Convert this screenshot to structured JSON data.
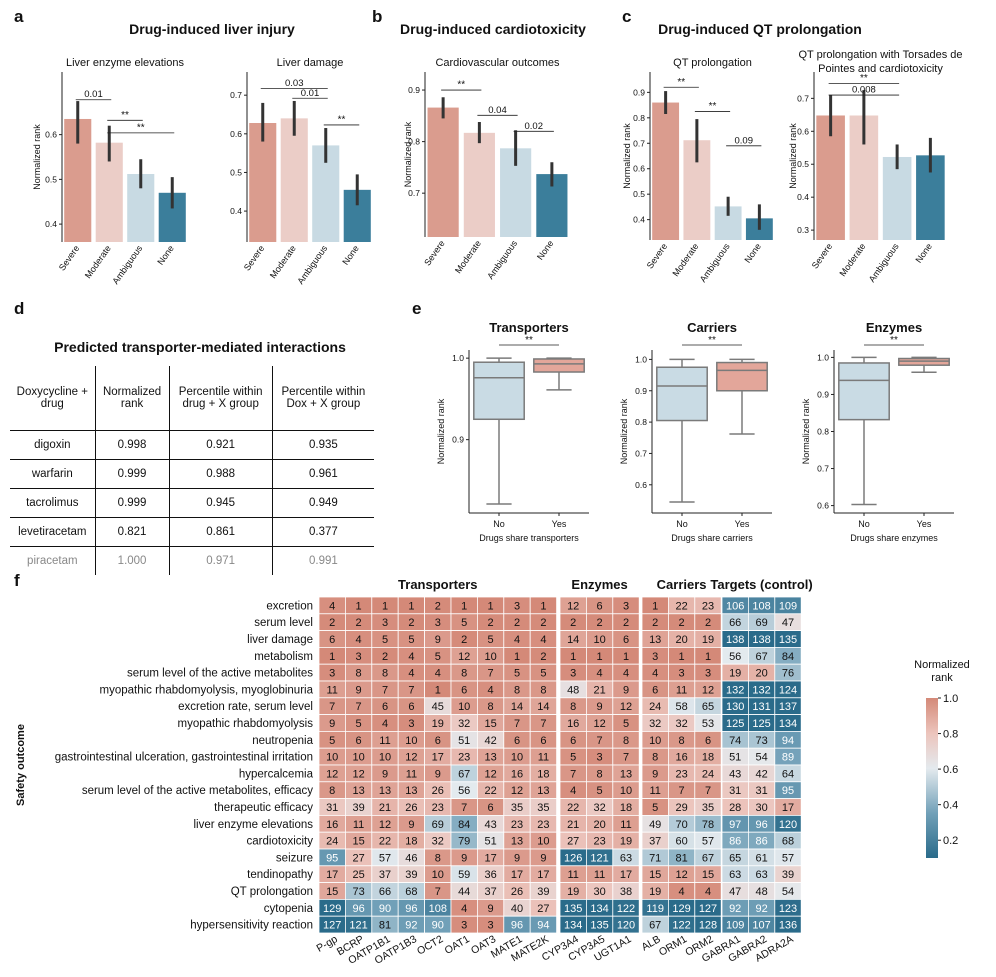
{
  "panels": {
    "a": {
      "letter": "a",
      "title": "Drug-induced liver injury"
    },
    "b": {
      "letter": "b",
      "title": "Drug-induced cardiotoxicity"
    },
    "c": {
      "letter": "c",
      "title": "Drug-induced QT prolongation"
    },
    "d": {
      "letter": "d",
      "title": "Predicted transporter-mediated interactions"
    },
    "e": {
      "letter": "e"
    },
    "f": {
      "letter": "f"
    }
  },
  "table": {
    "headers": [
      "Doxycycline + drug",
      "Normalized rank",
      "Percentile within drug + X group",
      "Percentile within Dox + X group"
    ],
    "rows": [
      [
        "digoxin",
        "0.998",
        "0.921",
        "0.935"
      ],
      [
        "warfarin",
        "0.999",
        "0.988",
        "0.961"
      ],
      [
        "tacrolimus",
        "0.999",
        "0.945",
        "0.949"
      ],
      [
        "levetiracetam",
        "0.821",
        "0.861",
        "0.377"
      ],
      [
        "piracetam",
        "1.000",
        "0.971",
        "0.991"
      ]
    ]
  },
  "colors": {
    "severe": "#da9c8e",
    "moderate": "#ebcdc7",
    "ambiguous": "#c8dae3",
    "none": "#3b7e9b",
    "box_no": "#c9dbe4",
    "box_yes": "#e3a69a"
  },
  "chart_data": [
    {
      "type": "bar",
      "title": "Liver enzyme elevations",
      "ylabel": "Normalized rank",
      "categories": [
        "Severe",
        "Moderate",
        "Ambiguous",
        "None"
      ],
      "values": [
        0.635,
        0.582,
        0.512,
        0.47
      ],
      "error": [
        [
          0.58,
          0.675
        ],
        [
          0.54,
          0.62
        ],
        [
          0.48,
          0.545
        ],
        [
          0.435,
          0.505
        ]
      ],
      "ylim": [
        0.36,
        0.74
      ],
      "yticks": [
        0.4,
        0.5,
        0.6
      ],
      "annotations": [
        {
          "from": 0,
          "to": 1,
          "y": 0.678,
          "text": "0.01"
        },
        {
          "from": 1,
          "to": 2,
          "y": 0.632,
          "text": "**"
        },
        {
          "from": 1,
          "to": 3,
          "y": 0.604,
          "text": "**"
        }
      ]
    },
    {
      "type": "bar",
      "title": "Liver damage",
      "ylabel": "",
      "categories": [
        "Severe",
        "Moderate",
        "Ambiguous",
        "None"
      ],
      "values": [
        0.628,
        0.64,
        0.57,
        0.455
      ],
      "error": [
        [
          0.58,
          0.68
        ],
        [
          0.595,
          0.685
        ],
        [
          0.525,
          0.615
        ],
        [
          0.415,
          0.495
        ]
      ],
      "ylim": [
        0.32,
        0.76
      ],
      "yticks": [
        0.4,
        0.5,
        0.6,
        0.7
      ],
      "annotations": [
        {
          "from": 0,
          "to": 2,
          "y": 0.717,
          "text": "0.03"
        },
        {
          "from": 1,
          "to": 2,
          "y": 0.692,
          "text": "0.01"
        },
        {
          "from": 2,
          "to": 3,
          "y": 0.623,
          "text": "**"
        }
      ]
    },
    {
      "type": "bar",
      "title": "Cardiovascular outcomes",
      "ylabel": "Normalized rank",
      "categories": [
        "Severe",
        "Moderate",
        "Ambiguous",
        "None"
      ],
      "values": [
        0.866,
        0.817,
        0.787,
        0.737
      ],
      "error": [
        [
          0.845,
          0.886
        ],
        [
          0.797,
          0.838
        ],
        [
          0.753,
          0.822
        ],
        [
          0.713,
          0.76
        ]
      ],
      "ylim": [
        0.615,
        0.935
      ],
      "yticks": [
        0.7,
        0.8,
        0.9
      ],
      "annotations": [
        {
          "from": 0,
          "to": 1,
          "y": 0.9,
          "text": "**"
        },
        {
          "from": 1,
          "to": 2,
          "y": 0.851,
          "text": "0.04"
        },
        {
          "from": 2,
          "to": 3,
          "y": 0.82,
          "text": "0.02"
        }
      ]
    },
    {
      "type": "bar",
      "title": "QT prolongation",
      "ylabel": "Normalized rank",
      "categories": [
        "Severe",
        "Moderate",
        "Ambiguous",
        "None"
      ],
      "values": [
        0.86,
        0.712,
        0.452,
        0.405
      ],
      "error": [
        [
          0.815,
          0.905
        ],
        [
          0.625,
          0.795
        ],
        [
          0.415,
          0.49
        ],
        [
          0.36,
          0.46
        ]
      ],
      "ylim": [
        0.32,
        0.98
      ],
      "yticks": [
        0.4,
        0.5,
        0.6,
        0.7,
        0.8,
        0.9
      ],
      "annotations": [
        {
          "from": 0,
          "to": 1,
          "y": 0.92,
          "text": "**"
        },
        {
          "from": 1,
          "to": 2,
          "y": 0.825,
          "text": "**"
        },
        {
          "from": 2,
          "to": 3,
          "y": 0.69,
          "text": "0.09"
        }
      ]
    },
    {
      "type": "bar",
      "title": "QT prolongation with Torsades de Pointes and cardiotoxicity",
      "ylabel": "Normalized rank",
      "categories": [
        "Severe",
        "Moderate",
        "Ambiguous",
        "None"
      ],
      "values": [
        0.648,
        0.648,
        0.522,
        0.527
      ],
      "error": [
        [
          0.585,
          0.71
        ],
        [
          0.56,
          0.725
        ],
        [
          0.485,
          0.56
        ],
        [
          0.475,
          0.58
        ]
      ],
      "ylim": [
        0.27,
        0.78
      ],
      "yticks": [
        0.3,
        0.4,
        0.5,
        0.6,
        0.7
      ],
      "annotations": [
        {
          "from": 0,
          "to": 2,
          "y": 0.745,
          "text": "**"
        },
        {
          "from": 0,
          "to": 2,
          "y": 0.71,
          "text": "0.008"
        }
      ]
    },
    {
      "type": "box",
      "title": "Transporters",
      "xlabel": "Drugs share transporters",
      "ylabel": "Normalized rank",
      "categories": [
        "No",
        "Yes"
      ],
      "boxes": [
        {
          "whislo": 0.821,
          "q1": 0.925,
          "med": 0.976,
          "q3": 0.995,
          "whishi": 1.0
        },
        {
          "whislo": 0.961,
          "q1": 0.983,
          "med": 0.993,
          "q3": 0.999,
          "whishi": 1.0
        }
      ],
      "ylim": [
        0.81,
        1.01
      ],
      "yticks": [
        0.9,
        1.0
      ],
      "annotation": "**"
    },
    {
      "type": "box",
      "title": "Carriers",
      "xlabel": "Drugs share carriers",
      "ylabel": "Normalized rank",
      "categories": [
        "No",
        "Yes"
      ],
      "boxes": [
        {
          "whislo": 0.545,
          "q1": 0.805,
          "med": 0.915,
          "q3": 0.975,
          "whishi": 1.0
        },
        {
          "whislo": 0.762,
          "q1": 0.9,
          "med": 0.965,
          "q3": 0.99,
          "whishi": 1.0
        }
      ],
      "ylim": [
        0.51,
        1.03
      ],
      "yticks": [
        0.6,
        0.7,
        0.8,
        0.9,
        1.0
      ],
      "annotation": "**"
    },
    {
      "type": "box",
      "title": "Enzymes",
      "xlabel": "Drugs share enzymes",
      "ylabel": "Normalized rank",
      "categories": [
        "No",
        "Yes"
      ],
      "boxes": [
        {
          "whislo": 0.603,
          "q1": 0.832,
          "med": 0.938,
          "q3": 0.985,
          "whishi": 1.0
        },
        {
          "whislo": 0.96,
          "q1": 0.979,
          "med": 0.99,
          "q3": 0.997,
          "whishi": 1.0
        }
      ],
      "ylim": [
        0.58,
        1.02
      ],
      "yticks": [
        0.6,
        0.7,
        0.8,
        0.9,
        1.0
      ],
      "annotation": "**"
    },
    {
      "type": "heatmap",
      "ylabel": "Safety outcome",
      "colorbar_label": "Normalized rank",
      "colorbar_ticks": [
        0.2,
        0.4,
        0.6,
        0.8,
        1.0
      ],
      "groups": [
        {
          "name": "Transporters",
          "columns": [
            "P-gp",
            "BCRP",
            "OATP1B1",
            "OATP1B3",
            "OCT2",
            "OAT1",
            "OAT3",
            "MATE1",
            "MATE2K"
          ]
        },
        {
          "name": "Enzymes",
          "columns": [
            "CYP3A4",
            "CYP3A5",
            "UGT1A1"
          ]
        },
        {
          "name": "Carriers",
          "columns": [
            "ALB",
            "ORM1",
            "ORM2"
          ]
        },
        {
          "name": "Targets (control)",
          "columns": [
            "GABRA1",
            "GABRA2",
            "ADRA2A"
          ]
        }
      ],
      "rows": [
        "excretion",
        "serum level",
        "liver damage",
        "metabolism",
        "serum level of the active metabolites",
        "myopathic rhabdomyolysis, myoglobinuria",
        "excretion rate, serum level",
        "myopathic rhabdomyolysis",
        "neutropenia",
        "gastrointestinal ulceration, gastrointestinal irritation",
        "hypercalcemia",
        "serum level of the active metabolites, efficacy",
        "therapeutic efficacy",
        "liver enzyme elevations",
        "cardiotoxicity",
        "seizure",
        "tendinopathy",
        "QT prolongation",
        "cytopenia",
        "hypersensitivity reaction"
      ],
      "values": [
        [
          4,
          1,
          1,
          1,
          2,
          1,
          1,
          3,
          1,
          12,
          6,
          3,
          1,
          22,
          23,
          106,
          108,
          109
        ],
        [
          2,
          2,
          3,
          2,
          3,
          5,
          2,
          2,
          2,
          2,
          2,
          2,
          2,
          2,
          2,
          66,
          69,
          47
        ],
        [
          6,
          4,
          5,
          5,
          9,
          2,
          5,
          4,
          4,
          14,
          10,
          6,
          13,
          20,
          19,
          138,
          138,
          135
        ],
        [
          1,
          3,
          2,
          4,
          5,
          12,
          10,
          1,
          2,
          1,
          1,
          1,
          3,
          1,
          1,
          56,
          67,
          84
        ],
        [
          3,
          8,
          8,
          4,
          4,
          8,
          7,
          5,
          5,
          3,
          4,
          4,
          4,
          3,
          3,
          19,
          20,
          76
        ],
        [
          11,
          9,
          7,
          7,
          1,
          6,
          4,
          8,
          8,
          48,
          21,
          9,
          6,
          11,
          12,
          132,
          132,
          124
        ],
        [
          7,
          7,
          6,
          6,
          45,
          10,
          8,
          14,
          14,
          8,
          9,
          12,
          24,
          58,
          65,
          130,
          131,
          137
        ],
        [
          9,
          5,
          4,
          3,
          19,
          32,
          15,
          7,
          7,
          16,
          12,
          5,
          32,
          32,
          53,
          125,
          125,
          134
        ],
        [
          5,
          6,
          11,
          10,
          6,
          51,
          42,
          6,
          6,
          6,
          7,
          8,
          10,
          8,
          6,
          74,
          73,
          94
        ],
        [
          10,
          10,
          10,
          12,
          17,
          23,
          13,
          10,
          11,
          5,
          3,
          7,
          8,
          16,
          18,
          51,
          54,
          89
        ],
        [
          12,
          12,
          9,
          11,
          9,
          67,
          12,
          16,
          18,
          7,
          8,
          13,
          9,
          23,
          24,
          43,
          42,
          64
        ],
        [
          8,
          13,
          13,
          13,
          26,
          56,
          22,
          12,
          13,
          4,
          5,
          10,
          11,
          7,
          7,
          31,
          31,
          95
        ],
        [
          31,
          39,
          21,
          26,
          23,
          7,
          6,
          35,
          35,
          22,
          32,
          18,
          5,
          29,
          35,
          28,
          30,
          17
        ],
        [
          16,
          11,
          12,
          9,
          69,
          84,
          43,
          23,
          23,
          21,
          20,
          11,
          49,
          70,
          78,
          97,
          96,
          120
        ],
        [
          24,
          15,
          22,
          18,
          32,
          79,
          51,
          13,
          10,
          27,
          23,
          19,
          37,
          60,
          57,
          86,
          86,
          68
        ],
        [
          95,
          27,
          57,
          46,
          8,
          9,
          17,
          9,
          9,
          126,
          121,
          63,
          71,
          81,
          67,
          65,
          61,
          57
        ],
        [
          17,
          25,
          37,
          39,
          10,
          59,
          36,
          17,
          17,
          11,
          11,
          17,
          15,
          12,
          15,
          63,
          63,
          39
        ],
        [
          15,
          73,
          66,
          68,
          7,
          44,
          37,
          26,
          39,
          19,
          30,
          38,
          19,
          4,
          4,
          47,
          48,
          54
        ],
        [
          129,
          96,
          90,
          96,
          108,
          4,
          9,
          40,
          27,
          135,
          134,
          122,
          119,
          129,
          127,
          92,
          92,
          123
        ],
        [
          127,
          121,
          81,
          92,
          90,
          3,
          3,
          96,
          94,
          134,
          135,
          120,
          67,
          122,
          128,
          109,
          107,
          136
        ]
      ]
    }
  ]
}
